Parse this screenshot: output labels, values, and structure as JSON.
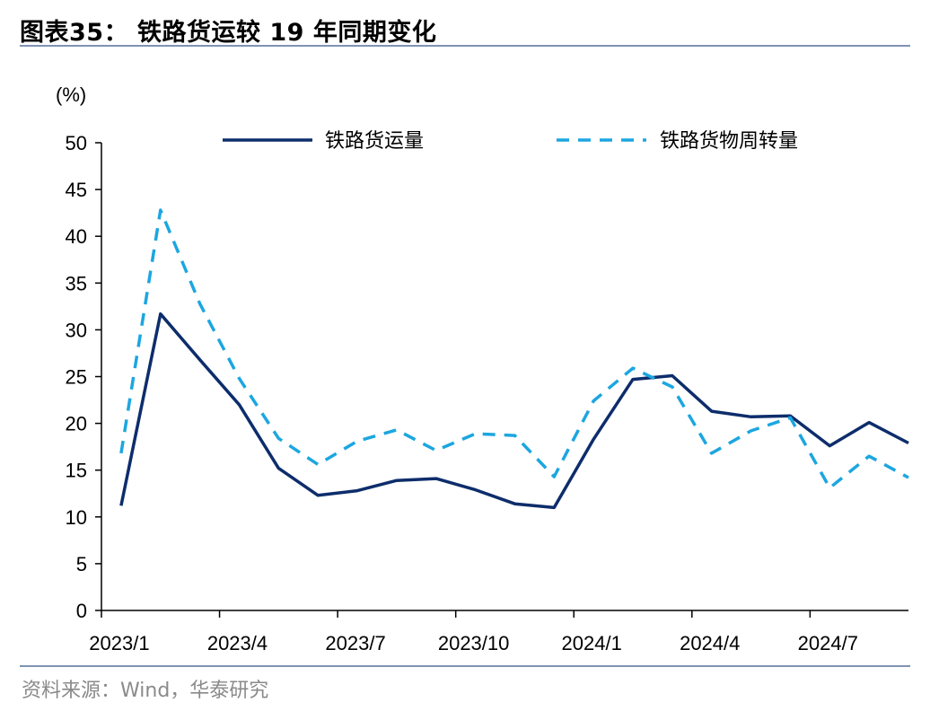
{
  "figure": {
    "title": "图表35： 铁路货运较 19 年同期变化",
    "source": "资料来源：Wind，华泰研究"
  },
  "chart_data": {
    "type": "line",
    "y_unit": "(%)",
    "ylim": [
      0,
      50
    ],
    "yticks": [
      0,
      5,
      10,
      15,
      20,
      25,
      30,
      35,
      40,
      45,
      50
    ],
    "x": [
      "2023/1",
      "2023/2",
      "2023/3",
      "2023/4",
      "2023/5",
      "2023/6",
      "2023/7",
      "2023/8",
      "2023/9",
      "2023/10",
      "2023/11",
      "2023/12",
      "2024/1",
      "2024/2",
      "2024/3",
      "2024/4",
      "2024/5",
      "2024/6",
      "2024/7",
      "2024/8",
      "2024/9"
    ],
    "xtick_labels": [
      "2023/1",
      "2023/4",
      "2023/7",
      "2023/10",
      "2024/1",
      "2024/4",
      "2024/7"
    ],
    "legend_position": "top",
    "grid": false,
    "series": [
      {
        "name": "铁路货运量",
        "color": "#0d2d6b",
        "style": "solid",
        "values": [
          11.2,
          31.7,
          26.8,
          22.0,
          15.2,
          12.3,
          12.8,
          13.9,
          14.1,
          12.9,
          11.4,
          11.0,
          18.3,
          24.7,
          25.1,
          21.3,
          20.7,
          20.8,
          17.6,
          20.1,
          17.9
        ]
      },
      {
        "name": "铁路货物周转量",
        "color": "#1ca6e0",
        "style": "dashed",
        "values": [
          16.8,
          42.8,
          32.8,
          24.8,
          18.4,
          15.6,
          18.1,
          19.3,
          17.1,
          18.9,
          18.7,
          14.3,
          22.4,
          25.9,
          23.9,
          16.8,
          19.2,
          20.6,
          13.1,
          16.5,
          14.2
        ]
      }
    ]
  }
}
